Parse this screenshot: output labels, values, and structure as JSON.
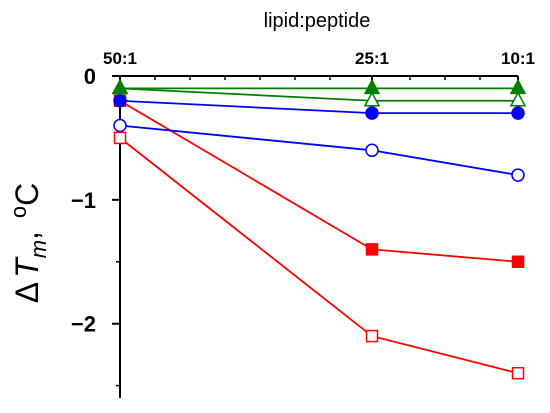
{
  "chart_data": {
    "type": "line",
    "xlabel": "lipid:peptide",
    "x_axis_position": "top",
    "categories": [
      "50:1",
      "25:1",
      "10:1"
    ],
    "x_positions": [
      50,
      25,
      10
    ],
    "ylabel": {
      "delta": "Δ",
      "symbol": "T",
      "subscript": "m",
      "separator": ", ",
      "unit_sup": "o",
      "unit": "C"
    },
    "yticks": [
      0,
      -1,
      -2
    ],
    "ytick_labels": [
      "0",
      "−1",
      "−2"
    ],
    "ylim": [
      -2.6,
      0
    ],
    "grid": false,
    "legend": "none",
    "series": [
      {
        "color": "#ff0000",
        "marker": "square",
        "filled": false,
        "values": [
          -0.5,
          -2.1,
          -2.4
        ]
      },
      {
        "color": "#ff0000",
        "marker": "square",
        "filled": true,
        "values": [
          -0.2,
          -1.4,
          -1.5
        ]
      },
      {
        "color": "#0000ff",
        "marker": "circle",
        "filled": false,
        "values": [
          -0.4,
          -0.6,
          -0.8
        ]
      },
      {
        "color": "#0000ff",
        "marker": "circle",
        "filled": true,
        "values": [
          -0.2,
          -0.3,
          -0.3
        ]
      },
      {
        "color": "#008000",
        "marker": "triangle",
        "filled": false,
        "values": [
          -0.1,
          -0.2,
          -0.2
        ]
      },
      {
        "color": "#008000",
        "marker": "triangle",
        "filled": true,
        "values": [
          -0.1,
          -0.1,
          -0.1
        ]
      }
    ]
  }
}
